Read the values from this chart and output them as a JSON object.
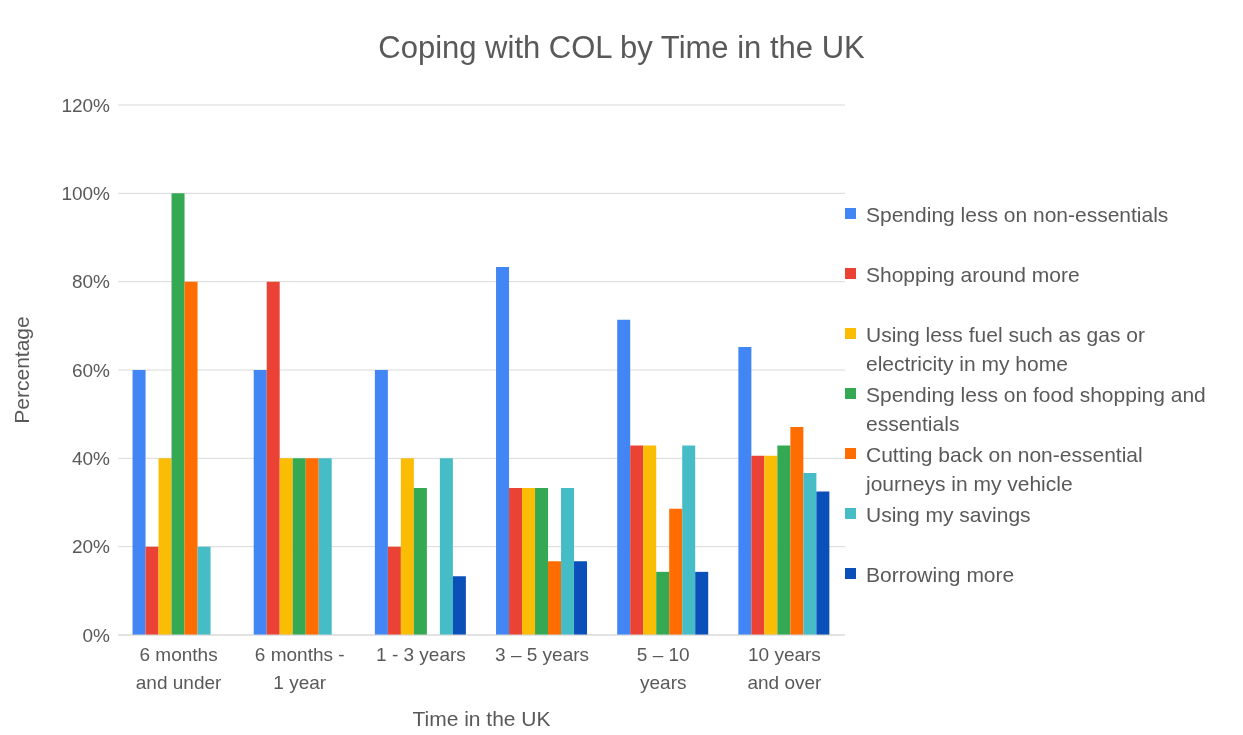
{
  "chart_data": {
    "type": "bar",
    "title": "Coping with COL by Time in the UK",
    "xlabel": "Time in the UK",
    "ylabel": "Percentage",
    "categories": [
      "6 months and under",
      "6 months - 1 year",
      "1 - 3 years",
      "3 – 5 years",
      "5 – 10 years",
      "10 years and over"
    ],
    "series": [
      {
        "name": "Spending less on non-essentials",
        "color": "#4285f4",
        "values": [
          60,
          60,
          60,
          83.3,
          71.4,
          65.2
        ]
      },
      {
        "name": "Shopping around more",
        "color": "#ea4335",
        "values": [
          20,
          80,
          20,
          33.3,
          42.9,
          40.6
        ]
      },
      {
        "name": "Using less fuel such as gas or electricity in my home",
        "color": "#fbbc04",
        "values": [
          40,
          40,
          40,
          33.3,
          42.9,
          40.6
        ]
      },
      {
        "name": "Spending less on food shopping and essentials",
        "color": "#34a853",
        "values": [
          100,
          40,
          33.3,
          33.3,
          14.3,
          42.9
        ]
      },
      {
        "name": "Cutting back on non-essential journeys in my vehicle",
        "color": "#ff6d01",
        "values": [
          80,
          40,
          0,
          16.7,
          28.6,
          47.1
        ]
      },
      {
        "name": "Using my savings",
        "color": "#46bdc6",
        "values": [
          20,
          40,
          40,
          33.3,
          42.9,
          36.7
        ]
      },
      {
        "name": "Borrowing more",
        "color": "#0b4fb8",
        "values": [
          0,
          0,
          13.3,
          16.7,
          14.3,
          32.5
        ]
      }
    ],
    "ylim": [
      0,
      120
    ],
    "yticks": [
      {
        "value": 0,
        "label": "0%"
      },
      {
        "value": 20,
        "label": "20%"
      },
      {
        "value": 40,
        "label": "40%"
      },
      {
        "value": 60,
        "label": "60%"
      },
      {
        "value": 80,
        "label": "80%"
      },
      {
        "value": 100,
        "label": "100%"
      },
      {
        "value": 120,
        "label": "120%"
      }
    ],
    "grid": "y",
    "legend": "right"
  }
}
